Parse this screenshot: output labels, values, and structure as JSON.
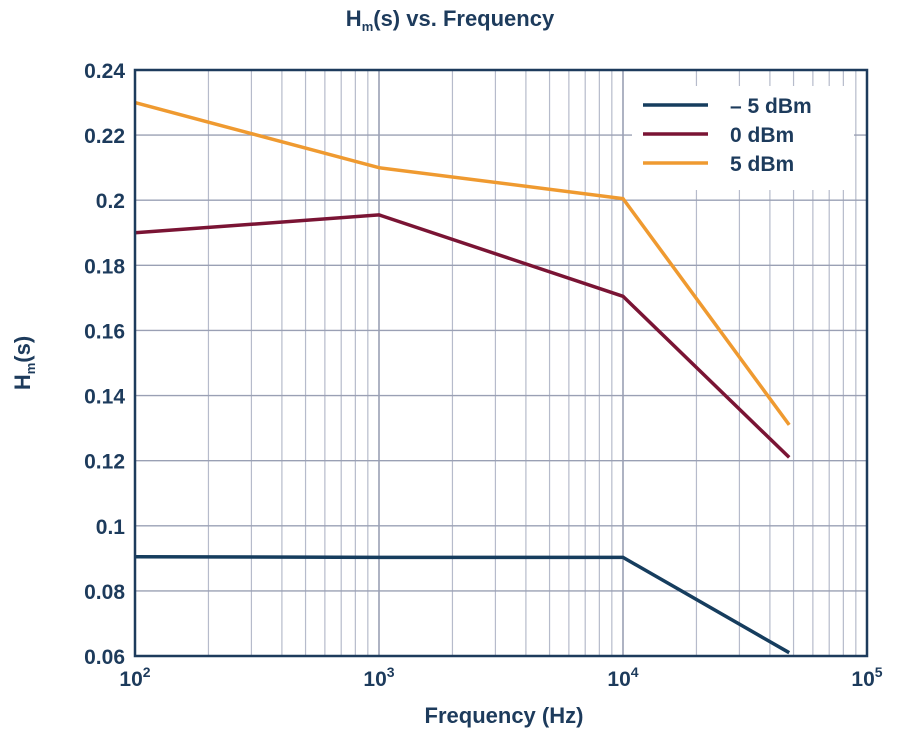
{
  "chart_data": {
    "type": "line",
    "title": {
      "main": "H",
      "sub": "m",
      "rest": "(s) vs. Frequency"
    },
    "xlabel": "Frequency (Hz)",
    "ylabel": {
      "main": "H",
      "sub": "m",
      "rest": "(s)"
    },
    "x_scale": "log",
    "xlim": [
      100,
      100000
    ],
    "ylim": [
      0.06,
      0.24
    ],
    "x_ticks": [
      {
        "value": 100,
        "base": "10",
        "exp": "2"
      },
      {
        "value": 1000,
        "base": "10",
        "exp": "3"
      },
      {
        "value": 10000,
        "base": "10",
        "exp": "4"
      },
      {
        "value": 100000,
        "base": "10",
        "exp": "5"
      }
    ],
    "y_ticks": [
      "0.06",
      "0.08",
      "0.1",
      "0.12",
      "0.14",
      "0.16",
      "0.18",
      "0.2",
      "0.22",
      "0.24"
    ],
    "grid": true,
    "legend_position": "top-right",
    "series": [
      {
        "name": "– 5 dBm",
        "color": "#163d5e",
        "x": [
          100,
          1000,
          10000,
          48000
        ],
        "y": [
          0.0905,
          0.0903,
          0.0903,
          0.061
        ]
      },
      {
        "name": "0 dBm",
        "color": "#7a1434",
        "x": [
          100,
          1000,
          10000,
          48000
        ],
        "y": [
          0.19,
          0.1955,
          0.1705,
          0.121
        ]
      },
      {
        "name": "5 dBm",
        "color": "#ef9a30",
        "x": [
          100,
          1000,
          10000,
          48000
        ],
        "y": [
          0.23,
          0.21,
          0.2005,
          0.131
        ]
      }
    ]
  }
}
